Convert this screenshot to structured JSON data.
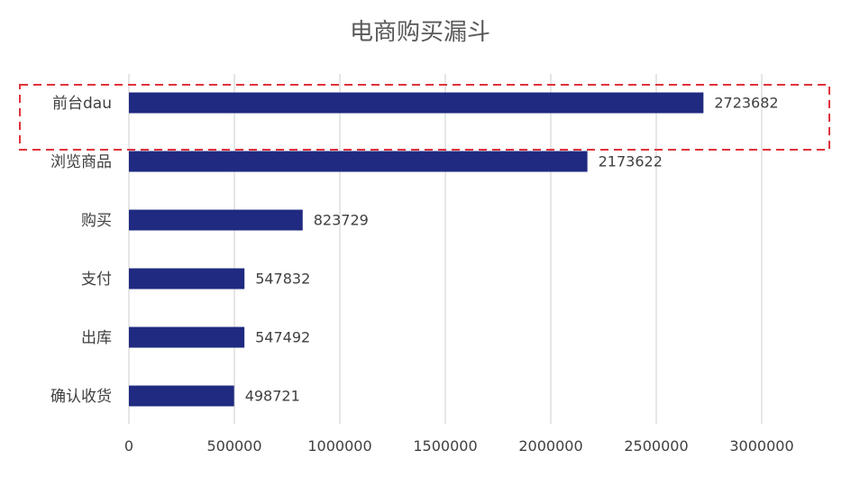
{
  "chart_data": {
    "type": "bar",
    "orientation": "horizontal",
    "title": "电商购买漏斗",
    "categories": [
      "前台dau",
      "浏览商品",
      "购买",
      "支付",
      "出库",
      "确认收货"
    ],
    "values": [
      2723682,
      2173622,
      823729,
      547832,
      547492,
      498721
    ],
    "xlim": [
      0,
      3000000
    ],
    "x_ticks": [
      "0",
      "500000",
      "1000000",
      "1500000",
      "2000000",
      "2500000",
      "3000000"
    ],
    "xlabel": "",
    "ylabel": "",
    "grid": "vertical",
    "legend": "none",
    "data_labels": true,
    "highlight": {
      "category": "前台dau",
      "style": "red dashed box"
    },
    "colors": {
      "bar": "#1F2A80",
      "highlight": "#E0323C",
      "grid": "#D9D9D9",
      "text": "#404040",
      "title": "#595959"
    }
  }
}
